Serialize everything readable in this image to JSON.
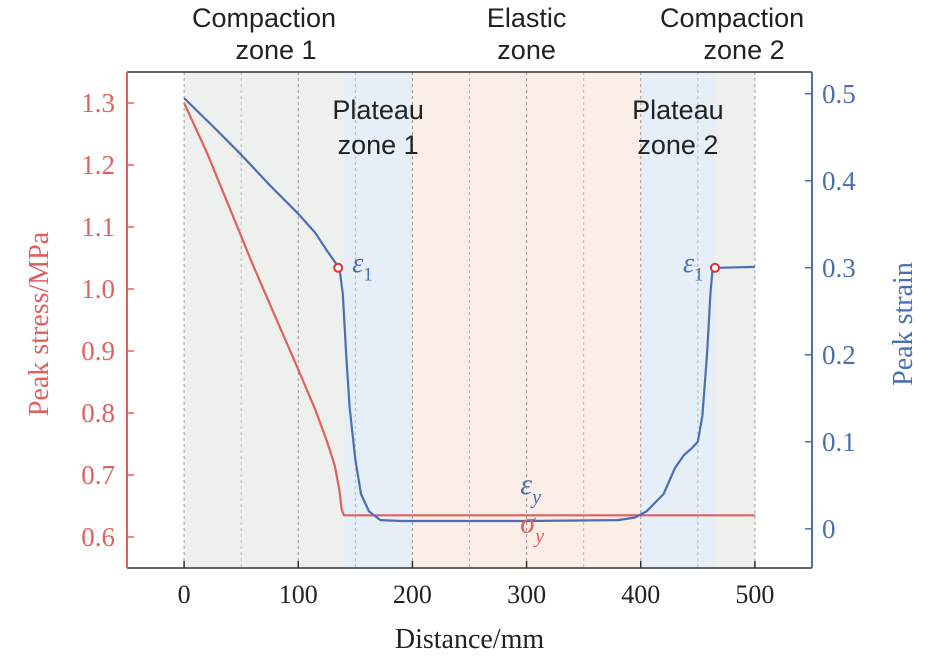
{
  "chart_data": {
    "type": "line",
    "xlabel": "Distance/mm",
    "ylabel_left": "Peak stress/MPa",
    "ylabel_right": "Peak strain",
    "xlim": [
      -50,
      550
    ],
    "ylim_left": [
      0.55,
      1.35
    ],
    "ylim_right": [
      -0.045,
      0.525
    ],
    "x_ticks": [
      0,
      100,
      200,
      300,
      400,
      500
    ],
    "y_left_ticks": [
      0.6,
      0.7,
      0.8,
      0.9,
      1.0,
      1.1,
      1.2,
      1.3
    ],
    "y_left_tick_labels": [
      "0.6",
      "0.7",
      "0.8",
      "0.9",
      "1.0",
      "1.1",
      "1.2",
      "1.3"
    ],
    "y_right_ticks": [
      0,
      0.1,
      0.2,
      0.3,
      0.4,
      0.5
    ],
    "y_right_tick_labels": [
      "0",
      "0.1",
      "0.2",
      "0.3",
      "0.4",
      "0.5"
    ],
    "grid": "vertical dashed every 50 mm",
    "colors": {
      "stress": "#e06060",
      "strain": "#4a6fb0",
      "compaction_zone": "#eef0ee",
      "plateau_zone": "#e6eef8",
      "elastic_zone": "#fbeee6"
    },
    "zones": [
      {
        "label_top": "Compaction",
        "label_bottom": "zone 1",
        "x0": 0,
        "x1": 140,
        "kind": "compaction",
        "label_position": "above-plot"
      },
      {
        "label_top": "Plateau",
        "label_bottom": "zone 1",
        "x0": 140,
        "x1": 200,
        "kind": "plateau",
        "label_position": "inside-plot"
      },
      {
        "label_top": "Elastic",
        "label_bottom": "zone",
        "x0": 200,
        "x1": 400,
        "kind": "elastic",
        "label_position": "above-plot"
      },
      {
        "label_top": "Plateau",
        "label_bottom": "zone 2",
        "x0": 400,
        "x1": 465,
        "kind": "plateau",
        "label_position": "inside-plot"
      },
      {
        "label_top": "Compaction",
        "label_bottom": "zone 2",
        "x0": 465,
        "x1": 500,
        "kind": "compaction",
        "label_position": "above-plot"
      }
    ],
    "series": [
      {
        "name": "σy",
        "label_main": "σ",
        "label_sub": "y",
        "axis": "left",
        "points": [
          [
            0,
            1.3
          ],
          [
            20,
            1.22
          ],
          [
            40,
            1.13
          ],
          [
            60,
            1.04
          ],
          [
            80,
            0.955
          ],
          [
            100,
            0.87
          ],
          [
            115,
            0.805
          ],
          [
            125,
            0.755
          ],
          [
            132,
            0.715
          ],
          [
            136,
            0.675
          ],
          [
            138,
            0.645
          ],
          [
            140,
            0.635
          ],
          [
            160,
            0.635
          ],
          [
            300,
            0.635
          ],
          [
            450,
            0.635
          ],
          [
            500,
            0.635
          ]
        ]
      },
      {
        "name": "εy",
        "label_main": "ε",
        "label_sub": "y",
        "axis": "right",
        "points": [
          [
            0,
            0.495
          ],
          [
            25,
            0.463
          ],
          [
            50,
            0.43
          ],
          [
            75,
            0.395
          ],
          [
            100,
            0.362
          ],
          [
            115,
            0.34
          ],
          [
            125,
            0.32
          ],
          [
            133,
            0.305
          ],
          [
            136,
            0.3
          ],
          [
            139,
            0.27
          ],
          [
            142,
            0.2
          ],
          [
            145,
            0.14
          ],
          [
            150,
            0.08
          ],
          [
            155,
            0.04
          ],
          [
            162,
            0.02
          ],
          [
            172,
            0.01
          ],
          [
            190,
            0.009
          ],
          [
            300,
            0.009
          ],
          [
            380,
            0.01
          ],
          [
            395,
            0.013
          ],
          [
            405,
            0.02
          ],
          [
            420,
            0.04
          ],
          [
            430,
            0.07
          ],
          [
            438,
            0.085
          ],
          [
            445,
            0.093
          ],
          [
            450,
            0.1
          ],
          [
            454,
            0.13
          ],
          [
            458,
            0.2
          ],
          [
            461,
            0.27
          ],
          [
            463,
            0.3
          ],
          [
            468,
            0.3
          ],
          [
            500,
            0.301
          ]
        ]
      }
    ],
    "markers": [
      {
        "label_main": "ε",
        "label_sub": "1",
        "x": 135,
        "y": 0.3,
        "axis": "right",
        "label_side": "right"
      },
      {
        "label_main": "ε",
        "label_sub": "1",
        "x": 465,
        "y": 0.3,
        "axis": "right",
        "label_side": "left"
      }
    ],
    "curve_labels": [
      {
        "series": "εy",
        "x": 305,
        "y": 0.04,
        "axis": "right"
      },
      {
        "series": "σy",
        "x": 305,
        "y": 0.607,
        "axis": "left"
      }
    ]
  }
}
